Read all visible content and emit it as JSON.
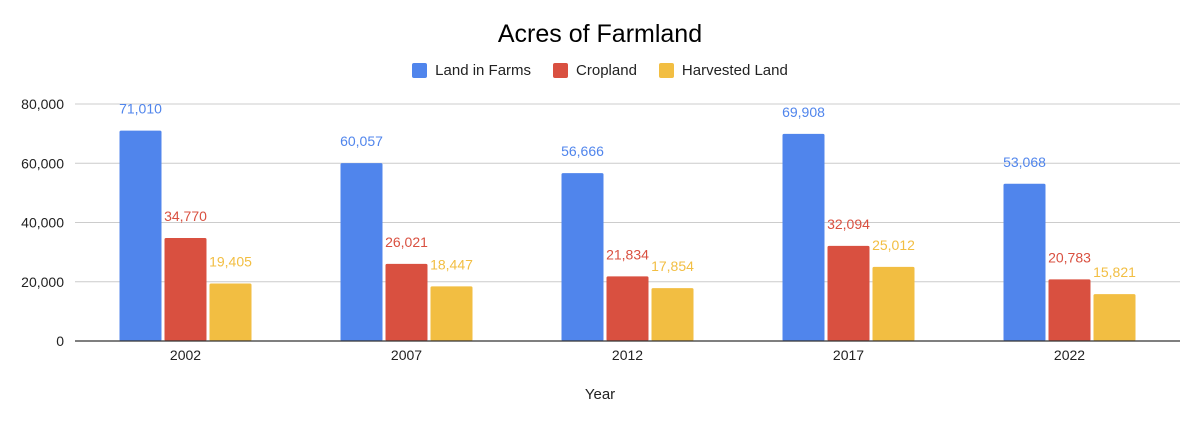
{
  "chart_data": {
    "type": "bar",
    "title": "Acres of Farmland",
    "xlabel": "Year",
    "ylabel": "",
    "categories": [
      "2002",
      "2007",
      "2012",
      "2017",
      "2022"
    ],
    "series": [
      {
        "name": "Land in Farms",
        "color": "#5085EC",
        "values": [
          71010,
          60057,
          56666,
          69908,
          53068
        ],
        "labels": [
          "71,010",
          "60,057",
          "56,666",
          "69,908",
          "53,068"
        ]
      },
      {
        "name": "Cropland",
        "color": "#D95040",
        "values": [
          34770,
          26021,
          21834,
          32094,
          20783
        ],
        "labels": [
          "34,770",
          "26,021",
          "21,834",
          "32,094",
          "20,783"
        ]
      },
      {
        "name": "Harvested Land",
        "color": "#F2BE42",
        "values": [
          19405,
          18447,
          17854,
          25012,
          15821
        ],
        "labels": [
          "19,405",
          "18,447",
          "17,854",
          "25,012",
          "15,821"
        ]
      }
    ],
    "ylim": [
      0,
      80000
    ],
    "yticks": [
      0,
      20000,
      40000,
      60000,
      80000
    ],
    "ytick_labels": [
      "0",
      "20,000",
      "40,000",
      "60,000",
      "80,000"
    ],
    "grid": true,
    "legend": "top-center"
  }
}
